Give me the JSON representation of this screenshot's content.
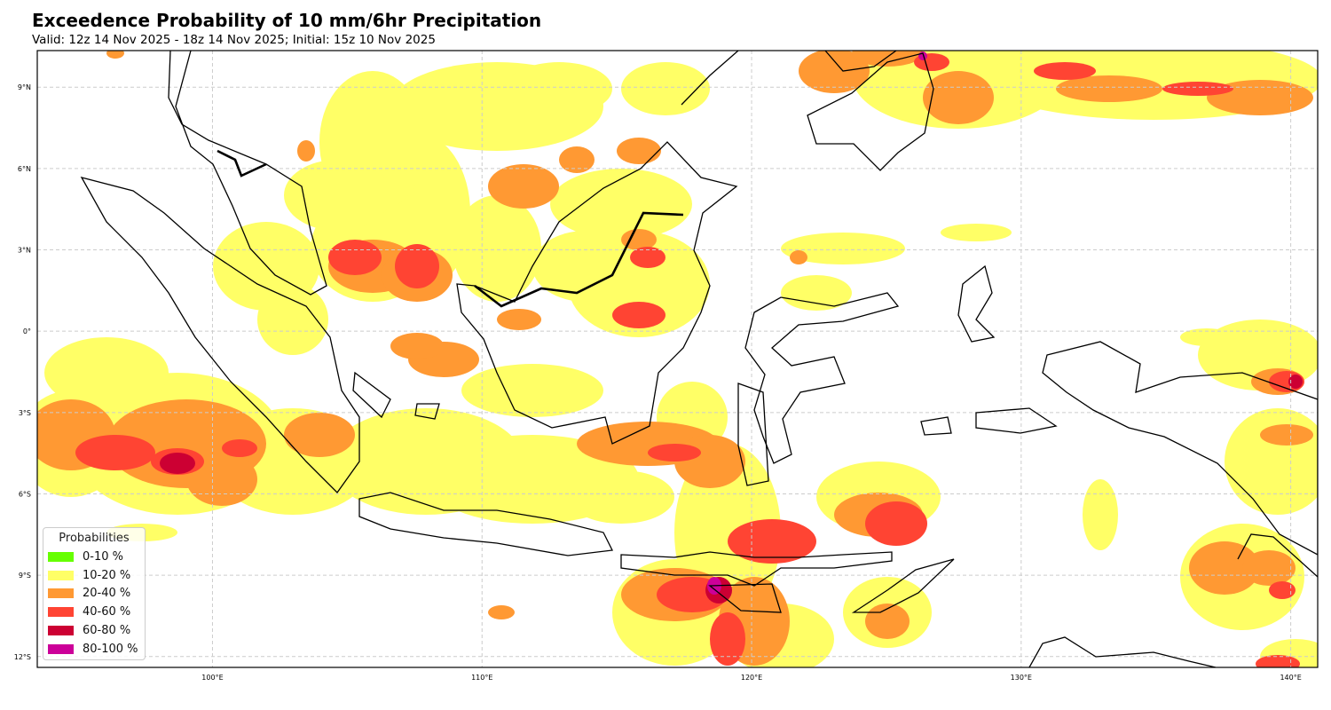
{
  "header": {
    "title": "Exceedence Probability of 10 mm/6hr Precipitation",
    "subtitle": "Valid: 12z 14 Nov 2025 - 18z 14 Nov 2025; Initial: 15z 10 Nov 2025"
  },
  "map": {
    "lon_range": [
      93.5,
      141.0
    ],
    "lat_range": [
      -12.4,
      10.35
    ],
    "lon_ticks": [
      {
        "v": 100,
        "label": "100°E"
      },
      {
        "v": 110,
        "label": "110°E"
      },
      {
        "v": 120,
        "label": "120°E"
      },
      {
        "v": 130,
        "label": "130°E"
      },
      {
        "v": 140,
        "label": "140°E"
      }
    ],
    "lat_ticks": [
      {
        "v": 9,
        "label": "9°N"
      },
      {
        "v": 6,
        "label": "6°N"
      },
      {
        "v": 3,
        "label": "3°N"
      },
      {
        "v": 0,
        "label": "0°"
      },
      {
        "v": -3,
        "label": "3°S"
      },
      {
        "v": -6,
        "label": "6°S"
      },
      {
        "v": -9,
        "label": "9°S"
      },
      {
        "v": -12,
        "label": "12°S"
      }
    ]
  },
  "legend": {
    "title": "Probabilities",
    "items": [
      {
        "label": "0-10 %",
        "color": "#66ff00"
      },
      {
        "label": "10-20 %",
        "color": "#ffff66"
      },
      {
        "label": "20-40 %",
        "color": "#ff9933"
      },
      {
        "label": "40-60 %",
        "color": "#ff4433"
      },
      {
        "label": "60-80 %",
        "color": "#cc0033"
      },
      {
        "label": "80-100 %",
        "color": "#cc0099"
      }
    ]
  }
}
